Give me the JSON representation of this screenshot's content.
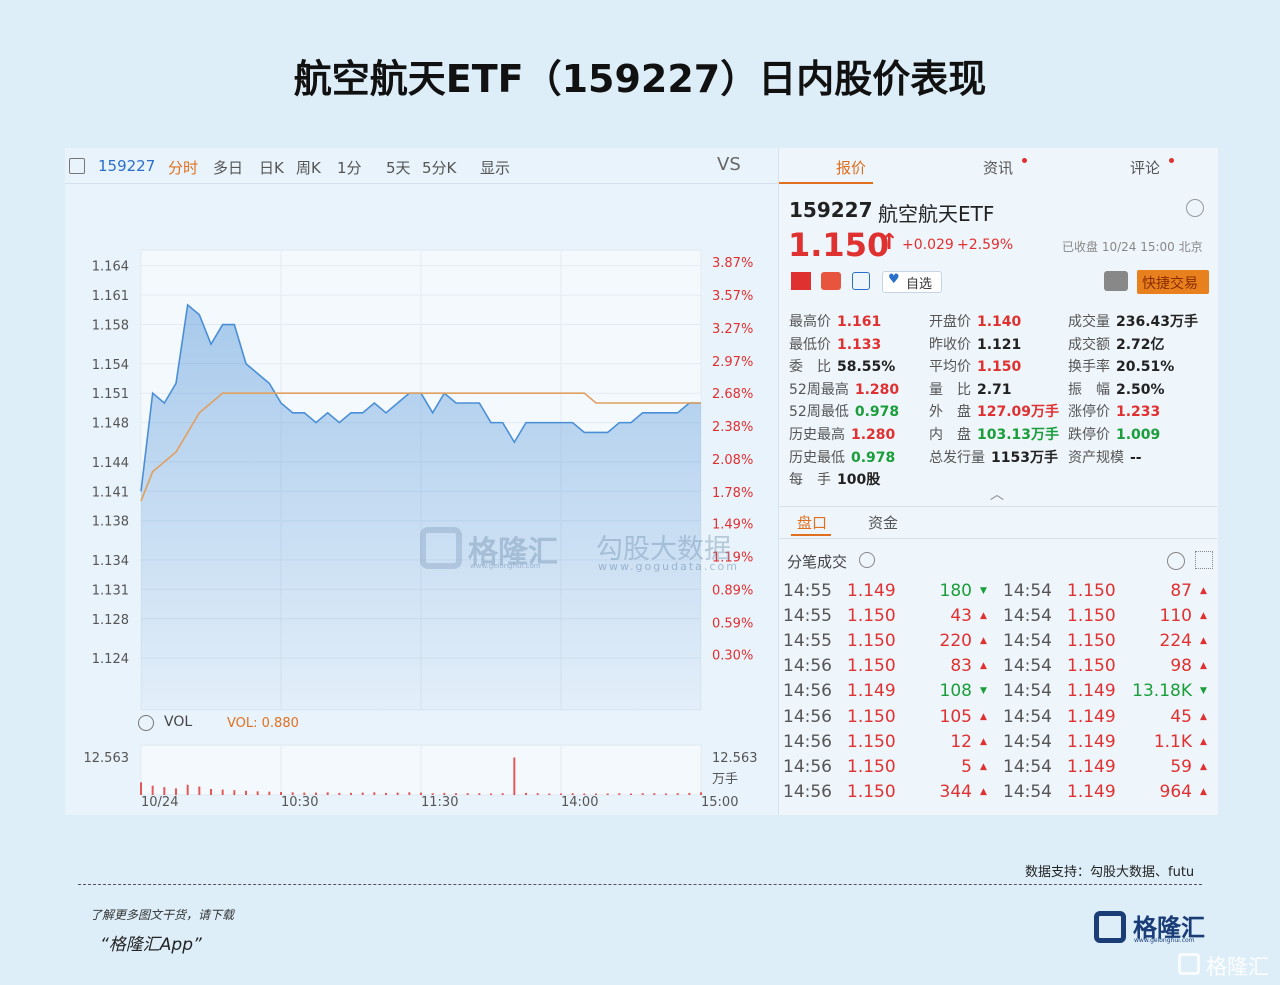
{
  "header": {
    "title": "航空航天ETF（159227）日内股价表现"
  },
  "toolbar": {
    "code": "159227",
    "tabs": [
      "分时",
      "多日",
      "日K",
      "周K",
      "1分",
      "5天",
      "5分K",
      "显示"
    ],
    "vs": "VS"
  },
  "quote_tabs": [
    "报价",
    "资讯",
    "评论"
  ],
  "quote": {
    "code": "159227",
    "name": "航空航天ETF",
    "price": "1.150",
    "change": "+0.029",
    "change_pct": "+2.59%",
    "status": "已收盘 10/24 15:00 北京",
    "watch": "自选",
    "trade": "快捷交易"
  },
  "stats": [
    [
      {
        "label": "最高价",
        "value": "1.161",
        "color": "#e03131"
      },
      {
        "label": "最低价",
        "value": "1.133",
        "color": "#e03131"
      },
      {
        "label": "委　比",
        "value": "58.55%",
        "color": "#222222"
      },
      {
        "label": "52周最高",
        "value": "1.280",
        "color": "#e03131"
      },
      {
        "label": "52周最低",
        "value": "0.978",
        "color": "#1a9e3a"
      },
      {
        "label": "历史最高",
        "value": "1.280",
        "color": "#e03131"
      },
      {
        "label": "历史最低",
        "value": "0.978",
        "color": "#1a9e3a"
      },
      {
        "label": "每　手",
        "value": "100股",
        "color": "#222222"
      }
    ],
    [
      {
        "label": "开盘价",
        "value": "1.140",
        "color": "#e03131"
      },
      {
        "label": "昨收价",
        "value": "1.121",
        "color": "#222222"
      },
      {
        "label": "平均价",
        "value": "1.150",
        "color": "#e03131"
      },
      {
        "label": "量　比",
        "value": "2.71",
        "color": "#222222"
      },
      {
        "label": "外　盘",
        "value": "127.09万手",
        "color": "#e03131"
      },
      {
        "label": "内　盘",
        "value": "103.13万手",
        "color": "#1a9e3a"
      },
      {
        "label": "总发行量",
        "value": "1153万手",
        "color": "#222222"
      }
    ],
    [
      {
        "label": "成交量",
        "value": "236.43万手",
        "color": "#222222"
      },
      {
        "label": "成交额",
        "value": "2.72亿",
        "color": "#222222"
      },
      {
        "label": "换手率",
        "value": "20.51%",
        "color": "#222222"
      },
      {
        "label": "振　幅",
        "value": "2.50%",
        "color": "#222222"
      },
      {
        "label": "涨停价",
        "value": "1.233",
        "color": "#e03131"
      },
      {
        "label": "跌停价",
        "value": "1.009",
        "color": "#1a9e3a"
      },
      {
        "label": "资产规模",
        "value": "--",
        "color": "#222222"
      }
    ]
  ],
  "order_tabs": [
    "盘口",
    "资金"
  ],
  "trades_title": "分笔成交",
  "trades": [
    {
      "left": [
        "14:55",
        "1.149",
        "180"
      ],
      "left_up": false,
      "right": [
        "14:54",
        "1.150",
        "87"
      ],
      "right_up": true
    },
    {
      "left": [
        "14:55",
        "1.150",
        "43"
      ],
      "left_up": true,
      "right": [
        "14:54",
        "1.150",
        "110"
      ],
      "right_up": true
    },
    {
      "left": [
        "14:55",
        "1.150",
        "220"
      ],
      "left_up": true,
      "right": [
        "14:54",
        "1.150",
        "224"
      ],
      "right_up": true
    },
    {
      "left": [
        "14:56",
        "1.150",
        "83"
      ],
      "left_up": true,
      "right": [
        "14:54",
        "1.150",
        "98"
      ],
      "right_up": true
    },
    {
      "left": [
        "14:56",
        "1.149",
        "108"
      ],
      "left_up": false,
      "right": [
        "14:54",
        "1.149",
        "13.18K"
      ],
      "right_up": false
    },
    {
      "left": [
        "14:56",
        "1.150",
        "105"
      ],
      "left_up": true,
      "right": [
        "14:54",
        "1.149",
        "45"
      ],
      "right_up": true
    },
    {
      "left": [
        "14:56",
        "1.150",
        "12"
      ],
      "left_up": true,
      "right": [
        "14:54",
        "1.149",
        "1.1K"
      ],
      "right_up": true
    },
    {
      "left": [
        "14:56",
        "1.150",
        "5"
      ],
      "left_up": true,
      "right": [
        "14:54",
        "1.149",
        "59"
      ],
      "right_up": true
    },
    {
      "left": [
        "14:56",
        "1.150",
        "344"
      ],
      "left_up": true,
      "right": [
        "14:54",
        "1.149",
        "964"
      ],
      "right_up": true
    }
  ],
  "chart_data": {
    "type": "line",
    "x": [
      0,
      5,
      10,
      15,
      20,
      25,
      30,
      35,
      40,
      45,
      50,
      55,
      60,
      65,
      70,
      75,
      80,
      85,
      90,
      95,
      100,
      105,
      110,
      115,
      120,
      125,
      130,
      135,
      140,
      145,
      150,
      155,
      160,
      165,
      170,
      175,
      180,
      185,
      190,
      195,
      200,
      205,
      210,
      215,
      220,
      225,
      230,
      235,
      240
    ],
    "xlim": [
      0,
      240
    ],
    "xticks": [
      {
        "value": 0,
        "label": "10/24"
      },
      {
        "value": 60,
        "label": "10:30"
      },
      {
        "value": 120,
        "label": "11:30"
      },
      {
        "value": 180,
        "label": "14:00"
      },
      {
        "value": 240,
        "label": "15:00"
      }
    ],
    "ylim": [
      1.1187,
      1.1656
    ],
    "yticks": [
      1.164,
      1.161,
      1.158,
      1.154,
      1.151,
      1.148,
      1.144,
      1.141,
      1.138,
      1.134,
      1.131,
      1.128,
      1.124
    ],
    "y2lim": [
      -0.205,
      3.979
    ],
    "y2ticks": [
      {
        "value": 3.87,
        "label": "3.87%"
      },
      {
        "value": 3.57,
        "label": "3.57%"
      },
      {
        "value": 3.27,
        "label": "3.27%"
      },
      {
        "value": 2.97,
        "label": "2.97%"
      },
      {
        "value": 2.68,
        "label": "2.68%"
      },
      {
        "value": 2.38,
        "label": "2.38%"
      },
      {
        "value": 2.08,
        "label": "2.08%"
      },
      {
        "value": 1.78,
        "label": "1.78%"
      },
      {
        "value": 1.49,
        "label": "1.49%"
      },
      {
        "value": 1.19,
        "label": "1.19%"
      },
      {
        "value": 0.89,
        "label": "0.89%"
      },
      {
        "value": 0.59,
        "label": "0.59%"
      },
      {
        "value": 0.3,
        "label": "0.30%"
      }
    ],
    "grid": true,
    "series": [
      {
        "name": "price",
        "color": "#4a8fd6",
        "values": [
          1.141,
          1.151,
          1.15,
          1.152,
          1.16,
          1.159,
          1.156,
          1.158,
          1.158,
          1.154,
          1.153,
          1.152,
          1.15,
          1.149,
          1.149,
          1.148,
          1.149,
          1.148,
          1.149,
          1.149,
          1.15,
          1.149,
          1.15,
          1.151,
          1.151,
          1.149,
          1.151,
          1.15,
          1.15,
          1.15,
          1.148,
          1.148,
          1.146,
          1.148,
          1.148,
          1.148,
          1.148,
          1.148,
          1.147,
          1.147,
          1.147,
          1.148,
          1.148,
          1.149,
          1.149,
          1.149,
          1.149,
          1.15,
          1.15
        ]
      },
      {
        "name": "average",
        "color": "#e0a060",
        "values": [
          1.14,
          1.143,
          1.144,
          1.145,
          1.147,
          1.149,
          1.15,
          1.151,
          1.151,
          1.151,
          1.151,
          1.151,
          1.151,
          1.151,
          1.151,
          1.151,
          1.151,
          1.151,
          1.151,
          1.151,
          1.151,
          1.151,
          1.151,
          1.151,
          1.151,
          1.151,
          1.151,
          1.151,
          1.151,
          1.151,
          1.151,
          1.151,
          1.151,
          1.151,
          1.151,
          1.151,
          1.151,
          1.151,
          1.151,
          1.15,
          1.15,
          1.15,
          1.15,
          1.15,
          1.15,
          1.15,
          1.15,
          1.15,
          1.15
        ]
      }
    ],
    "volume": {
      "label": "VOL",
      "current": "VOL: 0.880",
      "unit": "万手",
      "ylim": [
        0,
        12.563
      ],
      "yticks": [
        12.563
      ],
      "color": "#e05a5a",
      "values": [
        4.2,
        3.1,
        2.6,
        2.2,
        3.4,
        2.8,
        2.0,
        1.8,
        1.6,
        1.4,
        1.2,
        1.1,
        1.0,
        0.9,
        0.8,
        0.8,
        0.9,
        0.7,
        0.7,
        0.8,
        0.9,
        0.7,
        0.8,
        0.9,
        0.8,
        0.6,
        0.7,
        0.6,
        0.6,
        0.6,
        0.5,
        0.6,
        12.4,
        0.7,
        0.6,
        0.5,
        0.5,
        0.6,
        0.5,
        0.5,
        0.5,
        0.6,
        0.5,
        0.6,
        0.6,
        0.5,
        0.6,
        0.7,
        0.9
      ]
    }
  },
  "watermarks": {
    "brand": "格隆汇",
    "brand_url": "www.gelonghui.com",
    "partner": "勾股大数据",
    "partner_url": "www.gogudata.com"
  },
  "footer": {
    "source": "数据支持：勾股大数据、futu",
    "promo": "了解更多图文干货，请下载",
    "app": "“格隆汇App”",
    "logo": "格隆汇",
    "logo_url": "www.gelonghui.com",
    "corner": "格隆汇"
  }
}
